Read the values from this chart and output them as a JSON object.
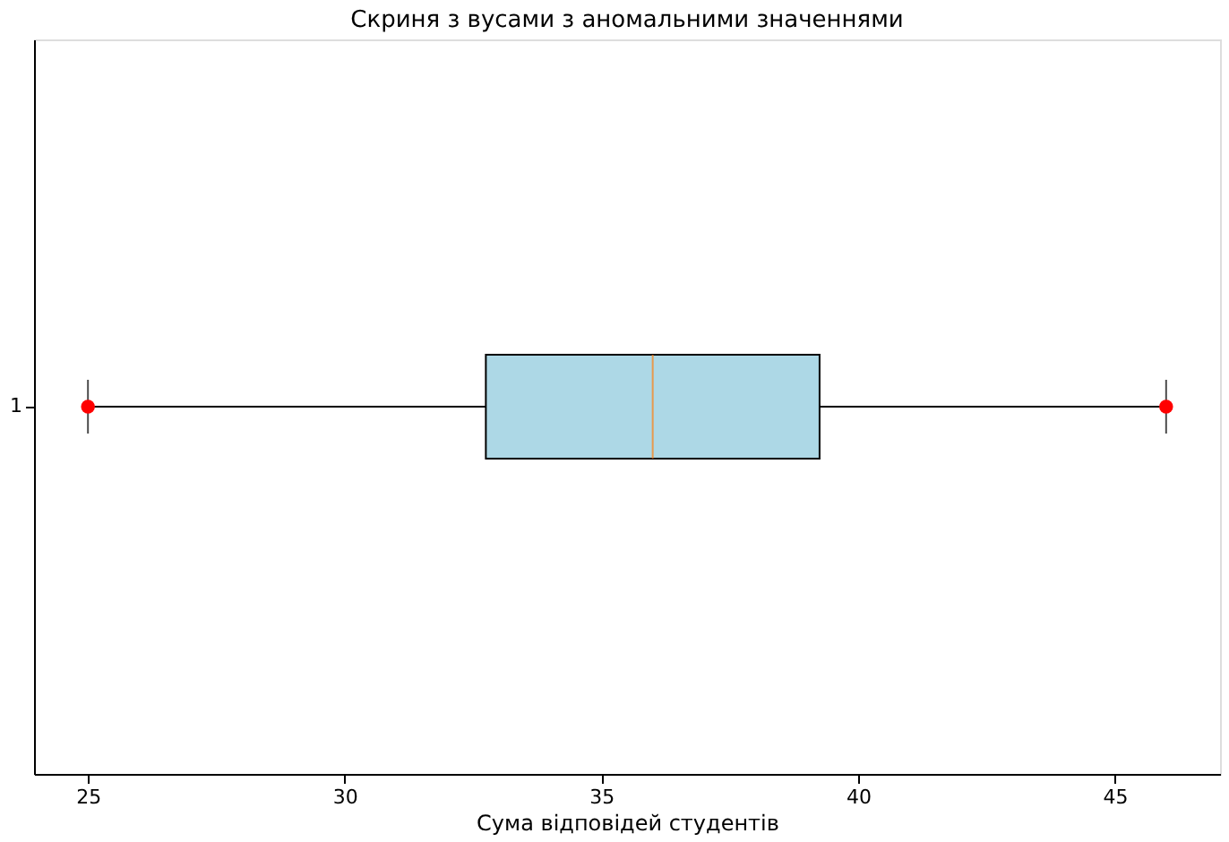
{
  "chart_data": {
    "type": "box",
    "title": "Скриня з вусами з аномальними значеннями",
    "xlabel": "Сума відповідей студентів",
    "orientation": "horizontal",
    "categories": [
      "1"
    ],
    "series": [
      {
        "color": "#add8e6",
        "boxes": [
          {
            "low": 25,
            "q1": 32.75,
            "median": 36,
            "q3": 39.25,
            "high": 46,
            "outliers": [
              25,
              46
            ]
          }
        ]
      }
    ],
    "xlim": [
      23.95,
      47.05
    ],
    "xticks": [
      25,
      30,
      35,
      40,
      45
    ],
    "grid": false
  }
}
